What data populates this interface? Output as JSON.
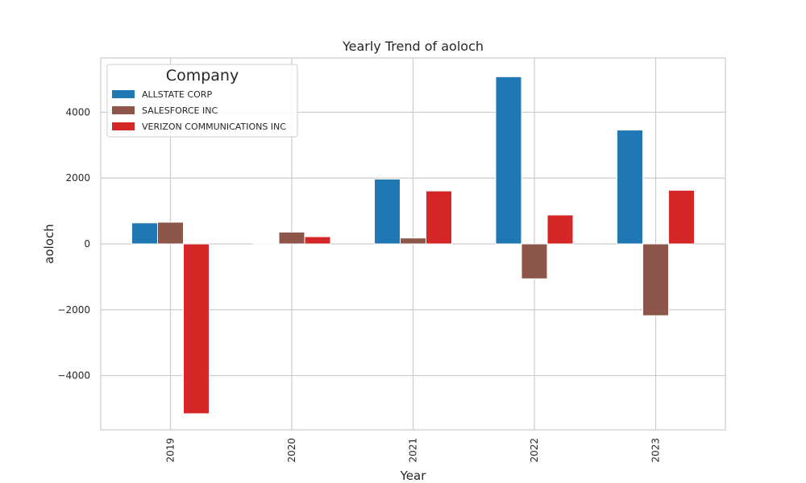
{
  "chart_data": {
    "type": "bar",
    "title": "Yearly Trend of aoloch",
    "xlabel": "Year",
    "ylabel": "aoloch",
    "categories": [
      "2019",
      "2020",
      "2021",
      "2022",
      "2023"
    ],
    "series": [
      {
        "name": "ALLSTATE CORP",
        "color": "#1f77b4",
        "values": [
          640,
          20,
          1970,
          5080,
          3460
        ]
      },
      {
        "name": "SALESFORCE INC",
        "color": "#8c564b",
        "values": [
          660,
          360,
          180,
          -1060,
          -2180
        ]
      },
      {
        "name": "VERIZON COMMUNICATIONS INC",
        "color": "#d62728",
        "values": [
          -5160,
          220,
          1610,
          880,
          1630
        ]
      }
    ],
    "ylim": [
      -5650,
      5650
    ],
    "yticks": [
      -4000,
      -2000,
      0,
      2000,
      4000
    ],
    "ytick_labels": [
      "−4000",
      "−2000",
      "0",
      "2000",
      "4000"
    ],
    "grid": true,
    "legend": {
      "title": "Company",
      "placement": "top-left"
    },
    "colors": {
      "grid": "#cccccc",
      "frame": "#cccccc",
      "text": "#262626"
    }
  }
}
